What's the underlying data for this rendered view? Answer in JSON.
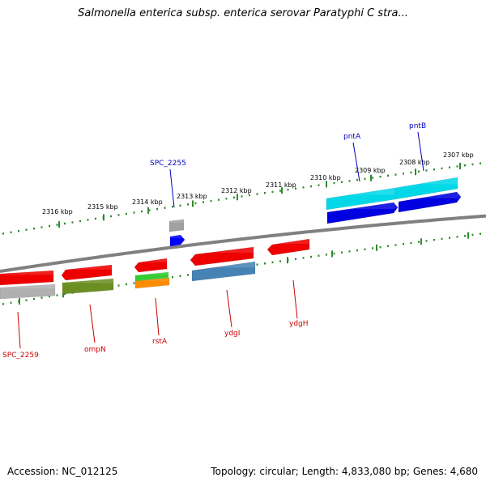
{
  "title": "Salmonella enterica subsp. enterica serovar Paratyphi C stra...",
  "footer": {
    "accession": "Accession: NC_012125",
    "topology": "Topology: circular; Length: 4,833,080 bp; Genes: 4,680"
  },
  "colors": {
    "forward_label": "#0000c0",
    "reverse_label": "#cc0000",
    "backbone": "#808080",
    "ticks": "#2e8b2e"
  },
  "ticks": [
    {
      "label": "2307 kbp"
    },
    {
      "label": "2308 kbp"
    },
    {
      "label": "2309 kbp"
    },
    {
      "label": "2310 kbp"
    },
    {
      "label": "2311 kbp"
    },
    {
      "label": "2312 kbp"
    },
    {
      "label": "2313 kbp"
    },
    {
      "label": "2314 kbp"
    },
    {
      "label": "2315 kbp"
    },
    {
      "label": "2316 kbp"
    }
  ],
  "labels": {
    "forward": [
      {
        "text": "pntA"
      },
      {
        "text": "pntB"
      },
      {
        "text": "SPC_2255"
      }
    ],
    "reverse": [
      {
        "text": "SPC_2259"
      },
      {
        "text": "ompN"
      },
      {
        "text": "rstA"
      },
      {
        "text": "ydgI"
      },
      {
        "text": "ydgH"
      }
    ]
  },
  "genes": [
    {
      "name": "pntA",
      "strand": "forward",
      "color": "#00d8e8"
    },
    {
      "name": "pntB",
      "strand": "forward",
      "color": "#00d8e8"
    },
    {
      "name": "pntA-feature",
      "strand": "forward",
      "color": "#0000e0"
    },
    {
      "name": "pntB-feature",
      "strand": "forward",
      "color": "#0000e0"
    },
    {
      "name": "SPC_2255",
      "strand": "forward",
      "color": "#a0a0a0"
    },
    {
      "name": "SPC_2255-feature",
      "strand": "forward",
      "color": "#0000ff"
    },
    {
      "name": "SPC_2259",
      "strand": "reverse",
      "color": "#ee0000"
    },
    {
      "name": "SPC_2259-feature",
      "strand": "reverse",
      "color": "#b0b0b0"
    },
    {
      "name": "ompN",
      "strand": "reverse",
      "color": "#ee0000"
    },
    {
      "name": "ompN-feature",
      "strand": "reverse",
      "color": "#6b8e23"
    },
    {
      "name": "rstA",
      "strand": "reverse",
      "color": "#ee0000"
    },
    {
      "name": "rstA-feature-1",
      "strand": "reverse",
      "color": "#33cc33"
    },
    {
      "name": "rstA-feature-2",
      "strand": "reverse",
      "color": "#ff8c00"
    },
    {
      "name": "ydgI",
      "strand": "reverse",
      "color": "#ee0000"
    },
    {
      "name": "ydgI-feature",
      "strand": "reverse",
      "color": "#4682b4"
    },
    {
      "name": "ydgH",
      "strand": "reverse",
      "color": "#ee0000"
    }
  ]
}
